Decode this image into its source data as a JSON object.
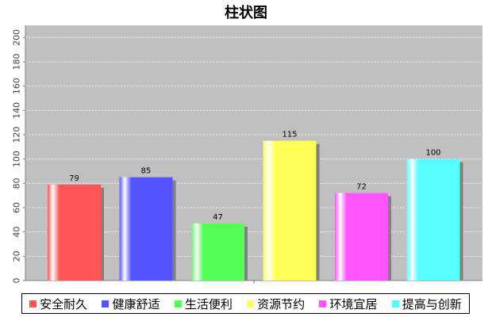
{
  "chart_data": {
    "type": "bar",
    "title": "柱状图",
    "categories": [
      "安全耐久",
      "健康舒适",
      "生活便利",
      "资源节约",
      "环境宜居",
      "提高与创新"
    ],
    "values": [
      79,
      85,
      47,
      115,
      72,
      100
    ],
    "colors": [
      "#ff5555",
      "#5555ff",
      "#55ff55",
      "#ffff55",
      "#ff55ff",
      "#55ffff"
    ],
    "ylim": [
      0,
      210
    ],
    "yticks": [
      0,
      20,
      40,
      60,
      80,
      100,
      120,
      140,
      160,
      180,
      200
    ],
    "xlabel": "",
    "ylabel": "",
    "grid": true,
    "legend_position": "bottom"
  }
}
